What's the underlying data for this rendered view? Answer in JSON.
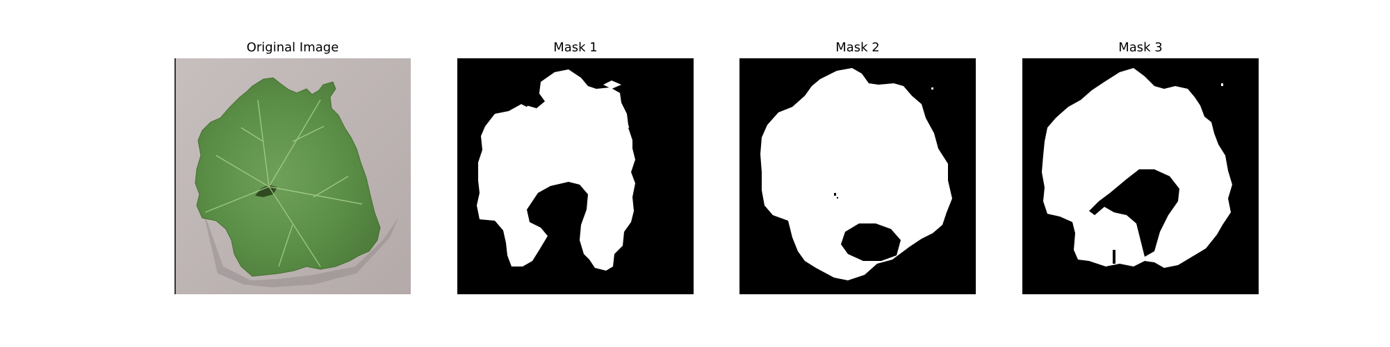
{
  "figure": {
    "panels": [
      {
        "title": "Original Image",
        "kind": "photo",
        "subject": "green-grape-leaf"
      },
      {
        "title": "Mask 1",
        "kind": "binary-mask"
      },
      {
        "title": "Mask 2",
        "kind": "binary-mask"
      },
      {
        "title": "Mask 3",
        "kind": "binary-mask"
      }
    ]
  },
  "colors": {
    "mask_foreground": "#ffffff",
    "mask_background": "#000000",
    "leaf": "#5a8f46",
    "backdrop": "#bdb4b3"
  }
}
